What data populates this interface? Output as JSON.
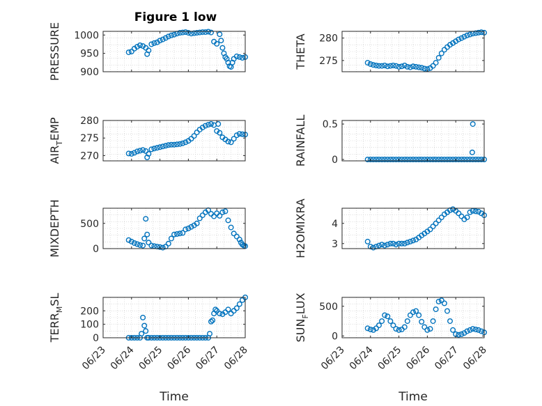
{
  "chart_data": {
    "type": "scatter",
    "title": "Figure 1 low",
    "xlabel": "Time",
    "x_tick_labels": [
      "06/23",
      "06/24",
      "06/25",
      "06/26",
      "06/27",
      "06/28"
    ],
    "x_range": [
      "06/23",
      "06/28"
    ],
    "grid": "on (dotted minor grid)",
    "marker": "open circle",
    "color": "#0072BD",
    "panels": [
      {
        "id": "pressure",
        "ylabel": "PRESSURE",
        "ylim": [
          900,
          1010
        ],
        "yticks": [
          900,
          950,
          1000
        ],
        "ytick_labels": [
          "900",
          "950",
          "1000"
        ],
        "x": [
          23.9,
          24.0,
          24.1,
          24.2,
          24.3,
          24.4,
          24.5,
          24.55,
          24.6,
          24.7,
          24.8,
          24.9,
          25.0,
          25.1,
          25.2,
          25.3,
          25.4,
          25.5,
          25.6,
          25.7,
          25.8,
          25.9,
          26.0,
          26.1,
          26.2,
          26.3,
          26.4,
          26.5,
          26.6,
          26.7,
          26.8,
          26.9,
          27.0,
          27.1,
          27.15,
          27.2,
          27.25,
          27.3,
          27.35,
          27.4,
          27.45,
          27.5,
          27.55,
          27.6,
          27.7,
          27.8,
          27.9,
          28.0
        ],
        "y": [
          953,
          955,
          963,
          968,
          972,
          970,
          965,
          948,
          958,
          975,
          978,
          980,
          985,
          988,
          992,
          996,
          999,
          1001,
          1004,
          1006,
          1007,
          1008,
          1006,
          1004,
          1005,
          1006,
          1007,
          1008,
          1008,
          1009,
          1007,
          982,
          976,
          1002,
          985,
          965,
          950,
          940,
          935,
          925,
          915,
          913,
          925,
          935,
          942,
          940,
          938,
          940
        ]
      },
      {
        "id": "theta",
        "ylabel": "THETA",
        "ylim": [
          272.5,
          281.5
        ],
        "yticks": [
          275,
          280
        ],
        "ytick_labels": [
          "275",
          "280"
        ],
        "x": [
          23.9,
          24.0,
          24.1,
          24.2,
          24.3,
          24.4,
          24.5,
          24.6,
          24.7,
          24.8,
          24.9,
          25.0,
          25.1,
          25.2,
          25.3,
          25.4,
          25.5,
          25.6,
          25.7,
          25.8,
          25.9,
          26.0,
          26.1,
          26.2,
          26.3,
          26.4,
          26.5,
          26.6,
          26.7,
          26.8,
          26.9,
          27.0,
          27.1,
          27.2,
          27.3,
          27.4,
          27.5,
          27.6,
          27.7,
          27.8,
          27.9,
          28.0
        ],
        "y": [
          274.5,
          274.2,
          274.0,
          273.9,
          273.8,
          273.8,
          273.9,
          273.7,
          273.8,
          273.9,
          273.8,
          273.6,
          273.7,
          273.9,
          273.6,
          273.5,
          273.7,
          273.6,
          273.5,
          273.4,
          273.2,
          273.1,
          273.3,
          273.8,
          274.5,
          275.6,
          276.6,
          277.4,
          278.0,
          278.5,
          278.9,
          279.3,
          279.7,
          280.0,
          280.3,
          280.6,
          280.8,
          281.0,
          281.1,
          281.2,
          281.3,
          281.2
        ]
      },
      {
        "id": "air_temp",
        "ylabel": "AIR_TEMP",
        "ylim": [
          268.5,
          280
        ],
        "yticks": [
          270,
          275,
          280
        ],
        "ytick_labels": [
          "270",
          "275",
          "280"
        ],
        "x": [
          23.9,
          24.0,
          24.1,
          24.2,
          24.3,
          24.4,
          24.5,
          24.55,
          24.6,
          24.7,
          24.8,
          24.9,
          25.0,
          25.1,
          25.2,
          25.3,
          25.4,
          25.5,
          25.6,
          25.7,
          25.8,
          25.9,
          26.0,
          26.1,
          26.2,
          26.3,
          26.4,
          26.5,
          26.6,
          26.7,
          26.8,
          26.9,
          27.0,
          27.05,
          27.1,
          27.2,
          27.3,
          27.4,
          27.5,
          27.6,
          27.7,
          27.8,
          27.9,
          28.0
        ],
        "y": [
          270.6,
          270.5,
          270.8,
          271.2,
          271.4,
          271.6,
          271.3,
          269.5,
          270.5,
          271.8,
          272.0,
          272.2,
          272.4,
          272.6,
          272.8,
          273.0,
          273.1,
          273.1,
          273.2,
          273.3,
          273.5,
          273.8,
          274.2,
          274.8,
          275.6,
          276.6,
          277.4,
          278.0,
          278.5,
          278.8,
          279.0,
          278.7,
          277.0,
          279.0,
          276.5,
          275.2,
          274.6,
          274.0,
          273.8,
          274.8,
          275.8,
          276.2,
          276.1,
          276.0
        ]
      },
      {
        "id": "rainfall",
        "ylabel": "RAINFALL",
        "ylim": [
          -0.02,
          0.55
        ],
        "yticks": [
          0,
          0.5
        ],
        "ytick_labels": [
          "0",
          "0.5"
        ],
        "x": [
          23.9,
          24.0,
          24.1,
          24.2,
          24.3,
          24.4,
          24.5,
          24.6,
          24.7,
          24.8,
          24.9,
          25.0,
          25.1,
          25.2,
          25.3,
          25.4,
          25.5,
          25.6,
          25.7,
          25.8,
          25.9,
          26.0,
          26.1,
          26.2,
          26.3,
          26.4,
          26.5,
          26.6,
          26.7,
          26.8,
          26.9,
          27.0,
          27.1,
          27.2,
          27.3,
          27.4,
          27.5,
          27.6,
          27.7,
          27.8,
          27.9,
          28.0,
          27.58,
          27.6
        ],
        "y": [
          0,
          0,
          0,
          0,
          0,
          0,
          0,
          0,
          0,
          0,
          0,
          0,
          0,
          0,
          0,
          0,
          0,
          0,
          0,
          0,
          0,
          0,
          0,
          0,
          0,
          0,
          0,
          0,
          0,
          0,
          0,
          0,
          0,
          0,
          0,
          0,
          0,
          0,
          0,
          0,
          0,
          0,
          0.1,
          0.5
        ]
      },
      {
        "id": "mixdepth",
        "ylabel": "MIXDEPTH",
        "ylim": [
          0,
          800
        ],
        "yticks": [
          0,
          500
        ],
        "ytick_labels": [
          "0",
          "500"
        ],
        "x": [
          23.9,
          24.0,
          24.1,
          24.2,
          24.3,
          24.4,
          24.45,
          24.5,
          24.55,
          24.6,
          24.7,
          24.8,
          24.9,
          25.0,
          25.1,
          25.2,
          25.3,
          25.4,
          25.5,
          25.6,
          25.7,
          25.8,
          25.9,
          26.0,
          26.1,
          26.2,
          26.3,
          26.4,
          26.5,
          26.6,
          26.7,
          26.8,
          26.9,
          27.0,
          27.1,
          27.2,
          27.3,
          27.4,
          27.5,
          27.6,
          27.7,
          27.8,
          27.85,
          27.9,
          27.95,
          28.0
        ],
        "y": [
          170,
          140,
          110,
          90,
          70,
          60,
          200,
          590,
          280,
          120,
          60,
          50,
          40,
          30,
          20,
          40,
          100,
          200,
          280,
          290,
          300,
          310,
          380,
          400,
          430,
          460,
          500,
          600,
          660,
          720,
          760,
          690,
          640,
          700,
          650,
          720,
          740,
          560,
          420,
          300,
          240,
          180,
          120,
          80,
          60,
          50
        ]
      },
      {
        "id": "h2omixra",
        "ylabel": "H2OMIXRA",
        "ylim": [
          2.75,
          4.75
        ],
        "yticks": [
          3,
          4
        ],
        "ytick_labels": [
          "3",
          "4"
        ],
        "x": [
          23.9,
          24.0,
          24.1,
          24.2,
          24.3,
          24.4,
          24.5,
          24.6,
          24.7,
          24.8,
          24.9,
          25.0,
          25.1,
          25.2,
          25.3,
          25.4,
          25.5,
          25.6,
          25.7,
          25.8,
          25.9,
          26.0,
          26.1,
          26.2,
          26.3,
          26.4,
          26.5,
          26.6,
          26.7,
          26.8,
          26.9,
          27.0,
          27.1,
          27.2,
          27.3,
          27.4,
          27.5,
          27.6,
          27.7,
          27.8,
          27.9,
          28.0
        ],
        "y": [
          3.1,
          2.85,
          2.8,
          2.85,
          2.9,
          2.95,
          2.9,
          2.95,
          3.0,
          3.0,
          2.95,
          3.0,
          3.0,
          3.0,
          3.05,
          3.1,
          3.15,
          3.2,
          3.3,
          3.4,
          3.5,
          3.6,
          3.7,
          3.85,
          4.0,
          4.15,
          4.3,
          4.45,
          4.55,
          4.65,
          4.7,
          4.62,
          4.5,
          4.35,
          4.2,
          4.3,
          4.55,
          4.62,
          4.6,
          4.58,
          4.5,
          4.4
        ]
      },
      {
        "id": "terr_msl",
        "ylabel": "TERR_MSL",
        "ylim": [
          0,
          300
        ],
        "yticks": [
          0,
          100,
          200
        ],
        "ytick_labels": [
          "0",
          "100",
          "200"
        ],
        "x": [
          23.9,
          24.0,
          24.1,
          24.2,
          24.3,
          24.35,
          24.4,
          24.45,
          24.5,
          24.55,
          24.6,
          24.7,
          24.8,
          24.9,
          25.0,
          25.1,
          25.2,
          25.3,
          25.4,
          25.5,
          25.6,
          25.7,
          25.8,
          25.9,
          26.0,
          26.1,
          26.2,
          26.3,
          26.4,
          26.5,
          26.6,
          26.7,
          26.75,
          26.8,
          26.85,
          26.9,
          26.95,
          27.0,
          27.1,
          27.2,
          27.3,
          27.4,
          27.5,
          27.6,
          27.7,
          27.8,
          27.9,
          28.0
        ],
        "y": [
          0,
          0,
          0,
          0,
          0,
          30,
          150,
          90,
          50,
          0,
          0,
          0,
          0,
          0,
          0,
          0,
          0,
          0,
          0,
          0,
          0,
          0,
          0,
          0,
          0,
          0,
          0,
          0,
          0,
          0,
          0,
          0,
          30,
          120,
          130,
          180,
          210,
          200,
          180,
          175,
          190,
          210,
          180,
          200,
          220,
          250,
          280,
          300
        ]
      },
      {
        "id": "sun_flux",
        "ylabel": "SUN_FLUX",
        "ylim": [
          -30,
          650
        ],
        "yticks": [
          0,
          500
        ],
        "ytick_labels": [
          "0",
          "500"
        ],
        "x": [
          23.9,
          24.0,
          24.1,
          24.2,
          24.3,
          24.4,
          24.5,
          24.6,
          24.7,
          24.8,
          24.9,
          25.0,
          25.1,
          25.2,
          25.3,
          25.4,
          25.5,
          25.6,
          25.7,
          25.8,
          25.9,
          26.0,
          26.1,
          26.2,
          26.3,
          26.4,
          26.5,
          26.6,
          26.7,
          26.8,
          26.9,
          27.0,
          27.1,
          27.2,
          27.3,
          27.4,
          27.5,
          27.6,
          27.7,
          27.8,
          27.9,
          28.0
        ],
        "y": [
          130,
          110,
          100,
          130,
          180,
          250,
          350,
          330,
          250,
          180,
          120,
          100,
          110,
          150,
          250,
          350,
          400,
          420,
          350,
          240,
          150,
          100,
          120,
          250,
          450,
          580,
          600,
          550,
          420,
          250,
          100,
          30,
          20,
          30,
          50,
          80,
          100,
          120,
          110,
          100,
          80,
          60
        ]
      }
    ]
  }
}
